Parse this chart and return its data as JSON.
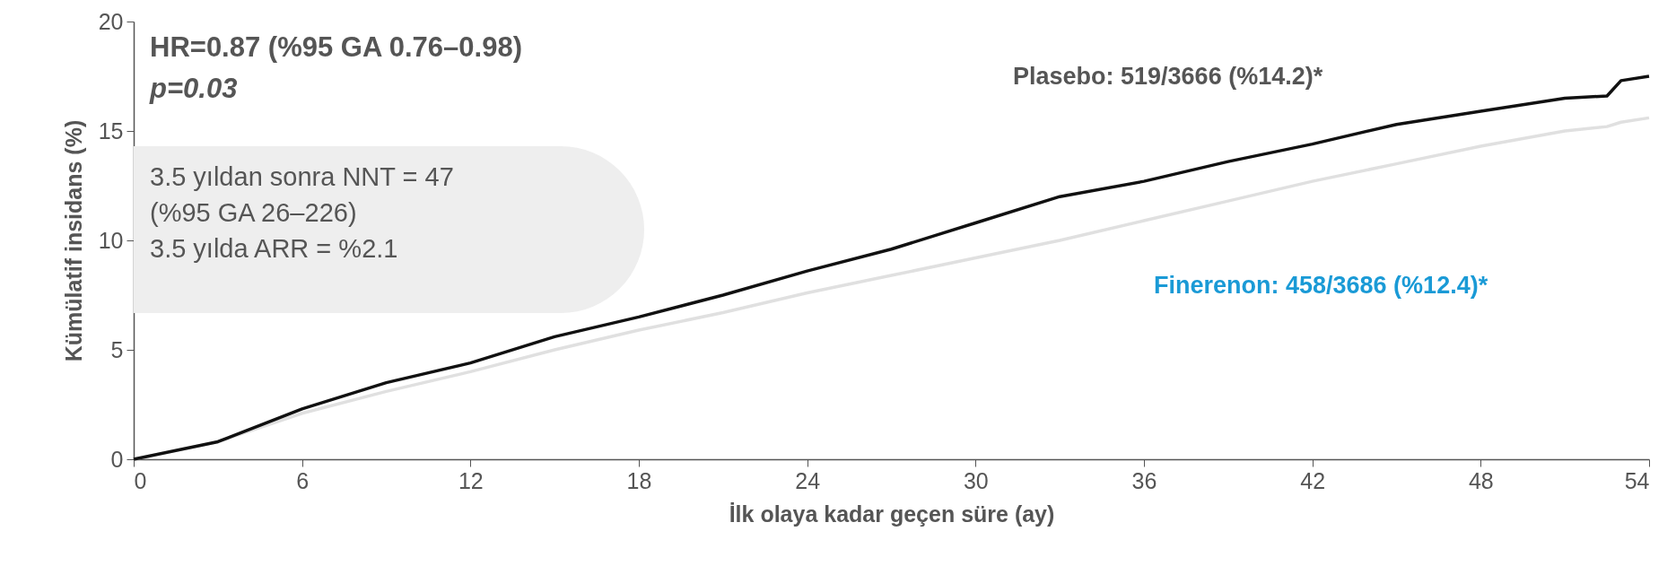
{
  "chart_data": {
    "type": "line",
    "xlabel": "İlk olaya kadar geçen süre (ay)",
    "ylabel": "Kümülatif insidans (%)",
    "annotations": [
      "HR=0.87 (%95 GA 0.76–0.98)",
      "p=0.03",
      "3.5 yıldan sonra NNT = 47",
      "(%95 GA 26–226)",
      "3.5 yılda ARR = %2.1"
    ],
    "x": [
      0,
      3,
      6,
      9,
      12,
      15,
      18,
      21,
      24,
      27,
      30,
      33,
      36,
      39,
      42,
      45,
      48,
      51,
      52.5,
      53,
      54
    ],
    "series": [
      {
        "name": "Plasebo: 519/3666 (%14.2)*",
        "color": "#111111",
        "values": [
          0,
          0.8,
          2.3,
          3.5,
          4.4,
          5.6,
          6.5,
          7.5,
          8.6,
          9.6,
          10.8,
          12.0,
          12.7,
          13.6,
          14.4,
          15.3,
          15.9,
          16.5,
          16.6,
          17.3,
          17.5
        ]
      },
      {
        "name": "Finerenon: 458/3686 (%12.4)*",
        "color": "#e0e0e0",
        "values": [
          0,
          0.8,
          2.1,
          3.1,
          4.0,
          5.0,
          5.9,
          6.7,
          7.6,
          8.4,
          9.2,
          10.0,
          10.9,
          11.8,
          12.7,
          13.5,
          14.3,
          15.0,
          15.2,
          15.4,
          15.6
        ]
      }
    ],
    "xlim": [
      0,
      54
    ],
    "xticks": [
      0,
      6,
      12,
      18,
      24,
      30,
      36,
      42,
      48,
      54
    ],
    "ylim": [
      0,
      20
    ],
    "yticks": [
      0,
      5,
      10,
      15,
      20
    ],
    "marker": "none",
    "line_style": "solid"
  }
}
